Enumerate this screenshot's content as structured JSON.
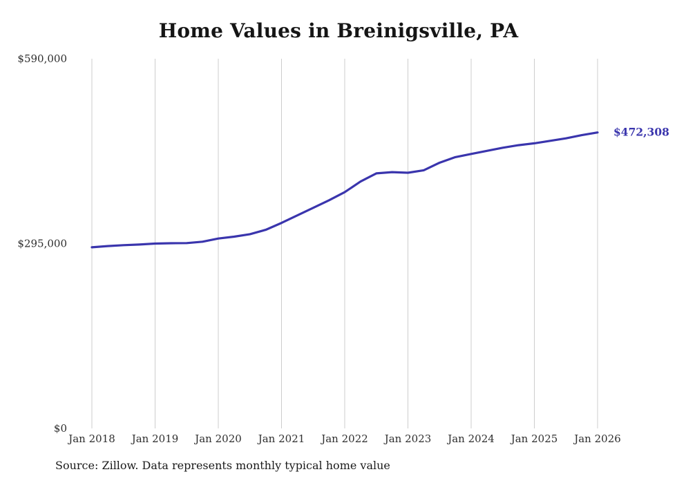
{
  "title": "Home Values in Breinigsville, PA",
  "source_note": "Source: Zillow. Data represents monthly typical home value",
  "colors": {
    "line": "#3a35ad",
    "end_label": "#3a35ad",
    "grid": "#cccccc",
    "axis_text": "#2e2e2e",
    "title_text": "#151515"
  },
  "chart_data": {
    "type": "line",
    "title": "Home Values in Breinigsville, PA",
    "xlabel": "",
    "ylabel": "",
    "ylim": [
      0,
      590000
    ],
    "grid": "vertical-only",
    "legend": "none",
    "y_ticks": [
      {
        "value": 590000,
        "label": "$590,000"
      },
      {
        "value": 295000,
        "label": "$295,000"
      },
      {
        "value": 0,
        "label": "$0"
      }
    ],
    "x_ticks": [
      "Jan 2018",
      "Jan 2019",
      "Jan 2020",
      "Jan 2021",
      "Jan 2022",
      "Jan 2023",
      "Jan 2024",
      "Jan 2025",
      "Jan 2026"
    ],
    "x_range_months": 96,
    "series": [
      {
        "name": "Typical home value",
        "end_label": "$472,308",
        "final_value": 472308,
        "points": [
          {
            "date": "2018-01",
            "value": 289000
          },
          {
            "date": "2018-04",
            "value": 291000
          },
          {
            "date": "2018-07",
            "value": 292500
          },
          {
            "date": "2018-10",
            "value": 293500
          },
          {
            "date": "2019-01",
            "value": 295000
          },
          {
            "date": "2019-04",
            "value": 295500
          },
          {
            "date": "2019-07",
            "value": 295800
          },
          {
            "date": "2019-10",
            "value": 298000
          },
          {
            "date": "2020-01",
            "value": 303000
          },
          {
            "date": "2020-04",
            "value": 306000
          },
          {
            "date": "2020-07",
            "value": 310000
          },
          {
            "date": "2020-10",
            "value": 317000
          },
          {
            "date": "2021-01",
            "value": 328000
          },
          {
            "date": "2021-04",
            "value": 340000
          },
          {
            "date": "2021-07",
            "value": 352000
          },
          {
            "date": "2021-10",
            "value": 364000
          },
          {
            "date": "2022-01",
            "value": 377000
          },
          {
            "date": "2022-04",
            "value": 394000
          },
          {
            "date": "2022-07",
            "value": 407000
          },
          {
            "date": "2022-10",
            "value": 409000
          },
          {
            "date": "2023-01",
            "value": 408000
          },
          {
            "date": "2023-04",
            "value": 412000
          },
          {
            "date": "2023-07",
            "value": 424000
          },
          {
            "date": "2023-10",
            "value": 433000
          },
          {
            "date": "2024-01",
            "value": 438000
          },
          {
            "date": "2024-04",
            "value": 443000
          },
          {
            "date": "2024-07",
            "value": 448000
          },
          {
            "date": "2024-10",
            "value": 452000
          },
          {
            "date": "2025-01",
            "value": 455000
          },
          {
            "date": "2025-04",
            "value": 459000
          },
          {
            "date": "2025-07",
            "value": 463000
          },
          {
            "date": "2025-10",
            "value": 468000
          },
          {
            "date": "2026-01",
            "value": 472308
          }
        ]
      }
    ]
  }
}
